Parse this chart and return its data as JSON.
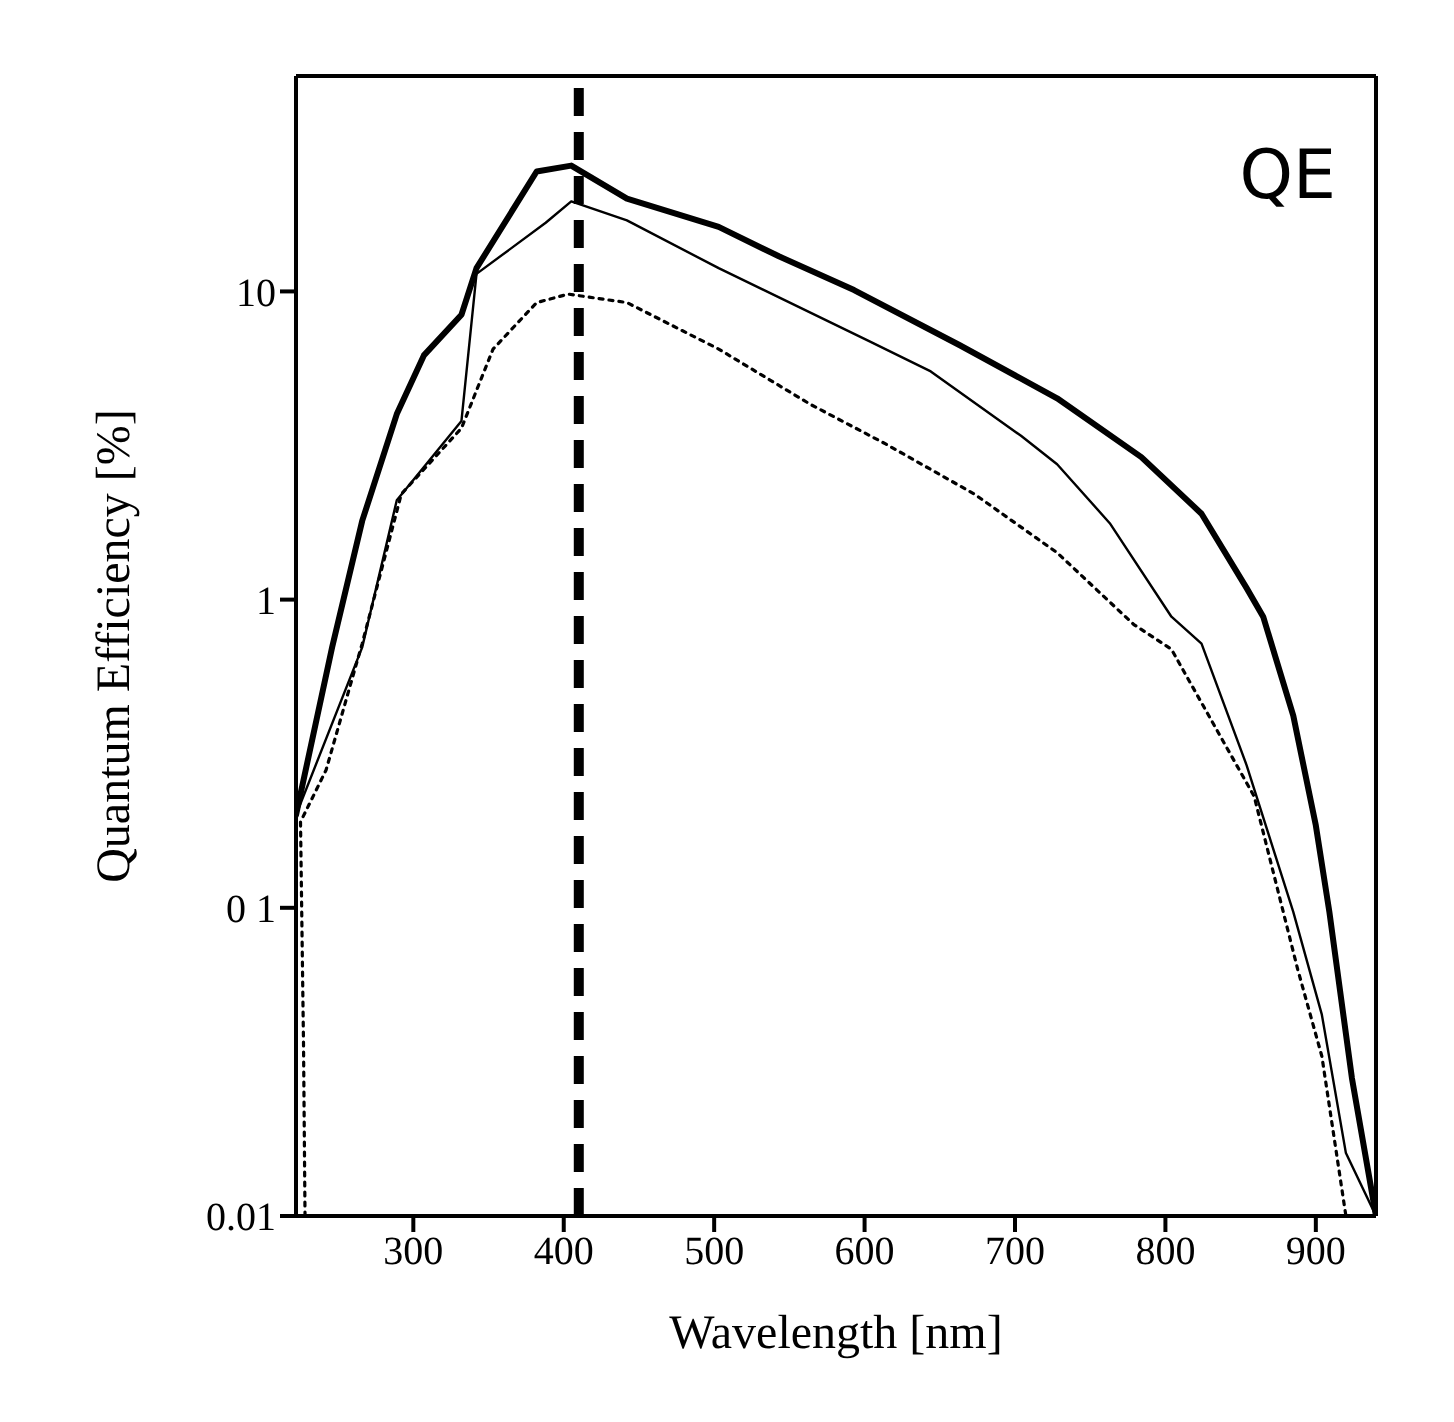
{
  "chart_data": {
    "type": "line",
    "xlabel": "Wavelength  [nm]",
    "ylabel": "Quantum Efficiency [%]",
    "log": "y",
    "xlim": [
      222,
      940
    ],
    "xticks": [
      300,
      400,
      500,
      600,
      700,
      800,
      900
    ],
    "ylim": [
      0.01,
      50
    ],
    "yticks": [
      0.01,
      {
        "value": 0.1,
        "label": "0 1"
      },
      1,
      10
    ],
    "legend": false,
    "marker": "none",
    "annotations": [
      "QE"
    ],
    "ref_lines": [
      {
        "axis": "x",
        "value": 410,
        "color": "#000000",
        "line_style": "dashed"
      }
    ],
    "series": [
      {
        "color": "#000000",
        "line_style": "solid",
        "x": [
          222,
          246,
          266,
          289,
          307,
          332,
          342,
          382,
          405,
          442,
          503,
          543,
          593,
          663,
          728,
          784,
          824,
          854,
          865,
          885,
          900,
          909,
          924,
          940
        ],
        "values": [
          0.2,
          0.7,
          1.8,
          4,
          6.2,
          8.4,
          11.9,
          24.5,
          25.6,
          20,
          16.2,
          13,
          10.1,
          6.7,
          4.5,
          2.9,
          1.9,
          1.09,
          0.88,
          0.42,
          0.185,
          0.097,
          0.028,
          0.01
        ]
      },
      {
        "color": "#000000",
        "line_style": "solid",
        "x": [
          222,
          266,
          289,
          332,
          342,
          388,
          405,
          442,
          503,
          603,
          644,
          704,
          728,
          763,
          804,
          824,
          854,
          885,
          904,
          920,
          940
        ],
        "values": [
          0.2,
          0.7,
          2.1,
          3.8,
          11.4,
          16.7,
          19.6,
          17,
          11.9,
          6.9,
          5.5,
          3.4,
          2.75,
          1.77,
          0.88,
          0.72,
          0.29,
          0.097,
          0.045,
          0.016,
          0.01
        ]
      },
      {
        "color": "#000000",
        "line_style": "dotted",
        "x": [
          228,
          227,
          225,
          242,
          266,
          292,
          332,
          353,
          382,
          403,
          442,
          503,
          564,
          614,
          673,
          728,
          779,
          804,
          859,
          888,
          904,
          920
        ],
        "values": [
          0.01,
          0.036,
          0.19,
          0.28,
          0.72,
          2.2,
          3.6,
          6.5,
          9.2,
          9.8,
          9.2,
          6.5,
          4.3,
          3.2,
          2.2,
          1.42,
          0.83,
          0.69,
          0.23,
          0.063,
          0.033,
          0.01
        ]
      }
    ]
  }
}
